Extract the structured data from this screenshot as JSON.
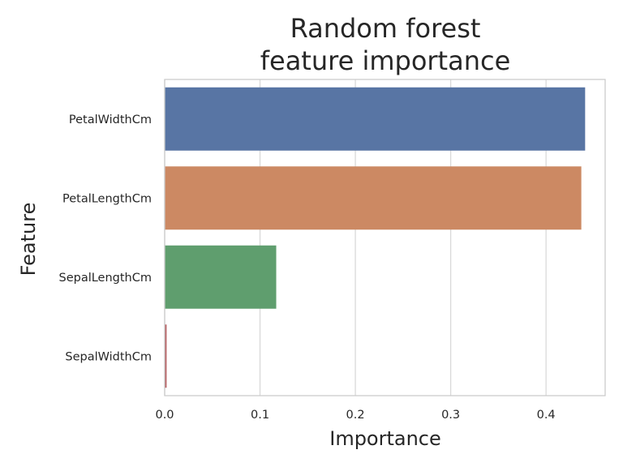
{
  "chart_data": {
    "type": "bar",
    "orientation": "horizontal",
    "title_lines": [
      "Random forest",
      "feature importance"
    ],
    "xlabel": "Importance",
    "ylabel": "Feature",
    "categories": [
      "PetalWidthCm",
      "PetalLengthCm",
      "SepalLengthCm",
      "SepalWidthCm"
    ],
    "values": [
      0.441,
      0.437,
      0.117,
      0.002
    ],
    "colors": [
      "#5875a4",
      "#cc8963",
      "#5f9e6e",
      "#b55d60"
    ],
    "xlim": [
      0,
      0.462
    ],
    "xticks": [
      "0.0",
      "0.1",
      "0.2",
      "0.3",
      "0.4"
    ],
    "xtick_values": [
      0,
      0.1,
      0.2,
      0.3,
      0.4
    ],
    "grid": "vertical",
    "legend": "none"
  }
}
